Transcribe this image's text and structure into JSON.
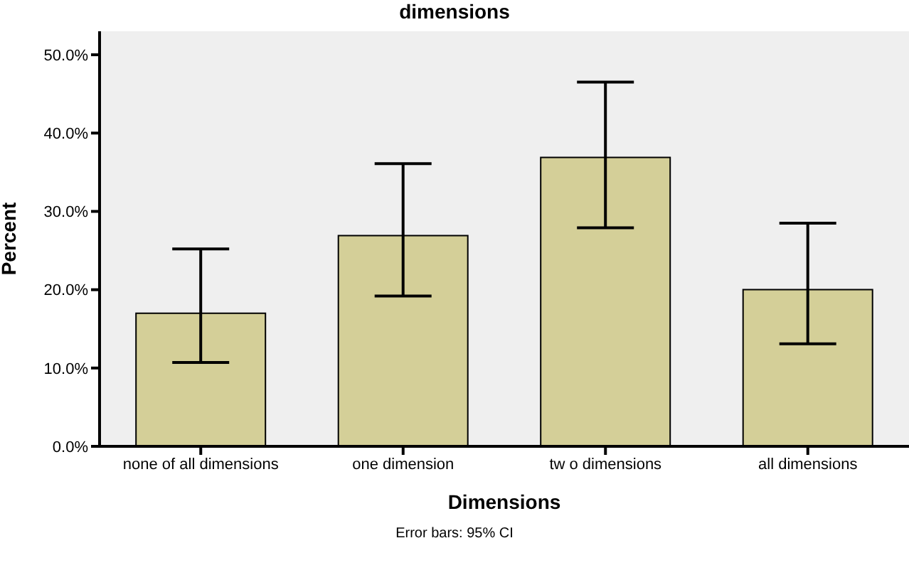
{
  "chart_data": {
    "type": "bar",
    "title": "dimensions",
    "xlabel": "Dimensions",
    "ylabel": "Percent",
    "categories": [
      "none of all dimensions",
      "one dimension",
      "tw o dimensions",
      "all dimensions"
    ],
    "values": [
      17.0,
      26.9,
      36.9,
      20.0
    ],
    "errors": [
      [
        10.7,
        25.2
      ],
      [
        19.2,
        36.1
      ],
      [
        27.9,
        46.5
      ],
      [
        13.1,
        28.5
      ]
    ],
    "color": "#d4cf98",
    "ylim": [
      0,
      53
    ],
    "yticks": [
      {
        "value": 0,
        "label": "0.0%"
      },
      {
        "value": 10,
        "label": "10.0%"
      },
      {
        "value": 20,
        "label": "20.0%"
      },
      {
        "value": 30,
        "label": "30.0%"
      },
      {
        "value": 40,
        "label": "40.0%"
      },
      {
        "value": 50,
        "label": "50.0%"
      }
    ],
    "grid": false,
    "legend": false,
    "annotations": [
      "Error bars: 95% CI"
    ]
  }
}
